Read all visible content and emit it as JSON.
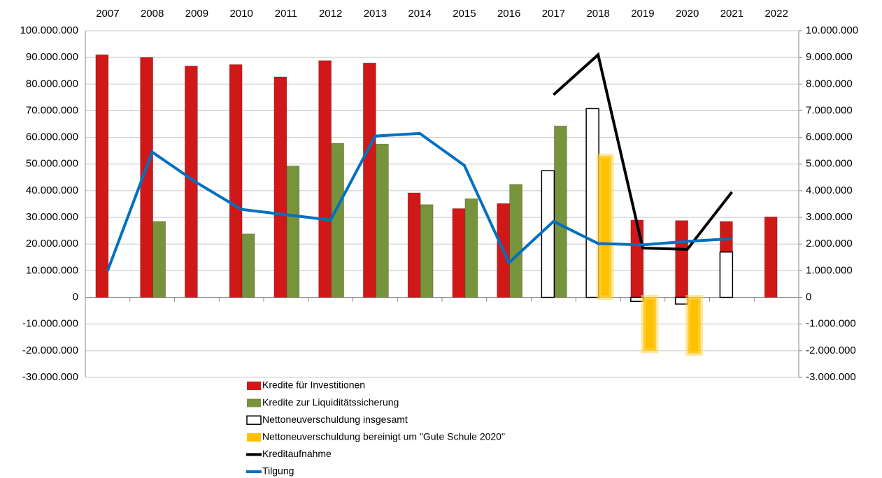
{
  "chart_data": {
    "type": "bar",
    "categories": [
      "2007",
      "2008",
      "2009",
      "2010",
      "2011",
      "2012",
      "2013",
      "2014",
      "2015",
      "2016",
      "2017",
      "2018",
      "2019",
      "2020",
      "2021",
      "2022"
    ],
    "ylim": [
      -30000000,
      100000000
    ],
    "yticks": [
      {
        "value": -30000000,
        "label": "-30.000.000"
      },
      {
        "value": -20000000,
        "label": "-20.000.000"
      },
      {
        "value": -10000000,
        "label": "-10.000.000"
      },
      0,
      {
        "value": 10000000,
        "label": "10.000.000"
      },
      {
        "value": 20000000,
        "label": "20.000.000"
      },
      {
        "value": 30000000,
        "label": "30.000.000"
      },
      {
        "value": 40000000,
        "label": "40.000.000"
      },
      {
        "value": 50000000,
        "label": "50.000.000"
      },
      {
        "value": 60000000,
        "label": "60.000.000"
      },
      {
        "value": 70000000,
        "label": "70.000.000"
      },
      {
        "value": 80000000,
        "label": "80.000.000"
      },
      {
        "value": 90000000,
        "label": "90.000.000"
      },
      {
        "value": 100000000,
        "label": "100.000.000"
      }
    ],
    "y2lim": [
      -3000000,
      10000000
    ],
    "y2ticks": [
      {
        "value": -3000000,
        "label": "-3.000.000"
      },
      {
        "value": -2000000,
        "label": "-2.000.000"
      },
      {
        "value": -1000000,
        "label": "-1.000.000"
      },
      0,
      {
        "value": 1000000,
        "label": "1.000.000"
      },
      {
        "value": 2000000,
        "label": "2.000.000"
      },
      {
        "value": 3000000,
        "label": "3.000.000"
      },
      {
        "value": 4000000,
        "label": "4.000.000"
      },
      {
        "value": 5000000,
        "label": "5.000.000"
      },
      {
        "value": 6000000,
        "label": "6.000.000"
      },
      {
        "value": 7000000,
        "label": "7.000.000"
      },
      {
        "value": 8000000,
        "label": "8.000.000"
      },
      {
        "value": 9000000,
        "label": "9.000.000"
      },
      {
        "value": 10000000,
        "label": "10.000.000"
      }
    ],
    "grid": true,
    "legend": "bottom",
    "series": [
      {
        "name": "Kredite für Investitionen",
        "type": "bar",
        "color": "#d01818",
        "values": [
          91000000,
          90000000,
          86800000,
          87300000,
          82700000,
          88800000,
          87900000,
          39200000,
          33300000,
          35200000,
          17000000,
          null,
          29000000,
          28800000,
          28500000,
          30200000
        ]
      },
      {
        "name": "Kredite zur Liquiditätssicherung",
        "type": "bar",
        "color": "#77933c",
        "values": [
          null,
          28500000,
          null,
          23800000,
          49300000,
          57800000,
          57500000,
          34800000,
          37000000,
          42400000,
          64300000,
          null,
          null,
          null,
          null,
          null
        ]
      },
      {
        "name": "Nettoneuverschuldung insgesamt",
        "type": "bar",
        "axis": "y2",
        "outline": true,
        "color": "#000000",
        "values": [
          null,
          null,
          null,
          null,
          null,
          null,
          null,
          null,
          null,
          null,
          4750000,
          7080000,
          -150000,
          -250000,
          1700000,
          null
        ]
      },
      {
        "name": "Nettoneuverschuldung bereinigt um \"Gute Schule 2020\"",
        "type": "bar",
        "axis": "y2",
        "glow": true,
        "color": "#ffc000",
        "values": [
          null,
          null,
          null,
          null,
          null,
          null,
          null,
          null,
          null,
          null,
          null,
          5300000,
          -2000000,
          -2100000,
          null,
          null
        ]
      },
      {
        "name": "Kreditaufnahme",
        "type": "line",
        "axis": "y2",
        "color": "#000000",
        "values": [
          null,
          null,
          null,
          null,
          null,
          null,
          null,
          null,
          null,
          null,
          7600000,
          9100000,
          1850000,
          1800000,
          3950000,
          null
        ]
      },
      {
        "name": "Tilgung",
        "type": "line",
        "axis": "y2",
        "color": "#0070c0",
        "values": [
          1000000,
          5450000,
          4300000,
          3300000,
          3100000,
          2900000,
          6050000,
          6150000,
          4950000,
          1300000,
          2850000,
          2020000,
          1970000,
          2100000,
          2200000,
          null
        ]
      }
    ]
  }
}
